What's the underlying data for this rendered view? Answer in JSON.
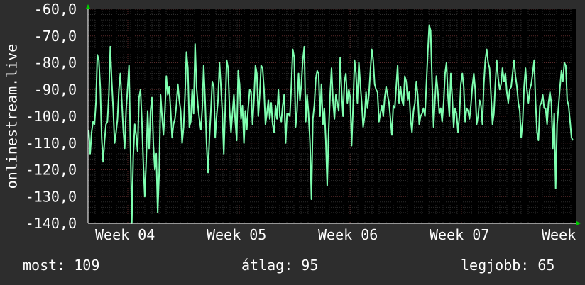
{
  "chart_data": {
    "type": "line",
    "title": "",
    "xlabel": "",
    "ylabel": "onlinestream.live",
    "ylim": [
      -140,
      -60
    ],
    "y_ticks": [
      "-60,0",
      "-70,0",
      "-80,0",
      "-90,0",
      "-100,0",
      "-110,0",
      "-120,0",
      "-130,0",
      "-140,0"
    ],
    "x_ticks": [
      "Week 04",
      "Week 05",
      "Week 06",
      "Week 07",
      "Week"
    ],
    "grid": true,
    "colors": {
      "line": "#7fffb0",
      "background": "#000000",
      "grid_minor": "#2c2c2c",
      "grid_major": "#5a2a2a",
      "axis": "#ffffff",
      "arrow": "#00cc00"
    },
    "series": [
      {
        "values": [
          -105,
          -114,
          -106,
          -102,
          -103,
          -95,
          -77,
          -79,
          -89,
          -108,
          -117,
          -109,
          -103,
          -102,
          -92,
          -74,
          -87,
          -97,
          -110,
          -106,
          -101,
          -90,
          -84,
          -94,
          -105,
          -112,
          -98,
          -90,
          -81,
          -110,
          -140,
          -115,
          -103,
          -107,
          -113,
          -93,
          -90,
          -102,
          -118,
          -130,
          -117,
          -98,
          -112,
          -98,
          -93,
          -111,
          -120,
          -114,
          -136,
          -121,
          -92,
          -100,
          -107,
          -98,
          -85,
          -92,
          -89,
          -98,
          -108,
          -103,
          -101,
          -96,
          -88,
          -94,
          -98,
          -110,
          -104,
          -92,
          -76,
          -82,
          -104,
          -102,
          -90,
          -99,
          -73,
          -89,
          -96,
          -101,
          -105,
          -97,
          -81,
          -94,
          -110,
          -121,
          -108,
          -98,
          -87,
          -89,
          -108,
          -100,
          -94,
          -80,
          -89,
          -99,
          -114,
          -97,
          -79,
          -82,
          -97,
          -106,
          -99,
          -92,
          -102,
          -109,
          -83,
          -88,
          -101,
          -96,
          -110,
          -98,
          -105,
          -97,
          -90,
          -91,
          -103,
          -94,
          -81,
          -84,
          -100,
          -92,
          -81,
          -82,
          -90,
          -103,
          -99,
          -94,
          -101,
          -95,
          -103,
          -106,
          -96,
          -101,
          -90,
          -100,
          -102,
          -96,
          -92,
          -110,
          -99,
          -99,
          -100,
          -89,
          -75,
          -78,
          -104,
          -98,
          -84,
          -94,
          -88,
          -79,
          -74,
          -102,
          -92,
          -99,
          -110,
          -131,
          -101,
          -96,
          -86,
          -83,
          -84,
          -100,
          -88,
          -103,
          -97,
          -109,
          -126,
          -105,
          -92,
          -82,
          -94,
          -101,
          -92,
          -95,
          -98,
          -78,
          -91,
          -100,
          -87,
          -84,
          -95,
          -90,
          -93,
          -111,
          -96,
          -79,
          -84,
          -95,
          -80,
          -88,
          -95,
          -104,
          -100,
          -91,
          -97,
          -92,
          -83,
          -75,
          -79,
          -88,
          -90,
          -91,
          -102,
          -99,
          -96,
          -100,
          -93,
          -89,
          -92,
          -95,
          -101,
          -107,
          -96,
          -97,
          -89,
          -81,
          -95,
          -89,
          -94,
          -96,
          -85,
          -87,
          -94,
          -91,
          -101,
          -106,
          -98,
          -95,
          -87,
          -92,
          -103,
          -100,
          -99,
          -97,
          -100,
          -88,
          -76,
          -66,
          -68,
          -88,
          -104,
          -94,
          -85,
          -91,
          -99,
          -97,
          -102,
          -95,
          -84,
          -80,
          -92,
          -100,
          -84,
          -93,
          -104,
          -97,
          -99,
          -106,
          -100,
          -88,
          -84,
          -89,
          -102,
          -97,
          -98,
          -101,
          -96,
          -89,
          -84,
          -90,
          -103,
          -100,
          -94,
          -96,
          -103,
          -88,
          -79,
          -75,
          -80,
          -82,
          -92,
          -103,
          -99,
          -88,
          -79,
          -86,
          -90,
          -88,
          -82,
          -87,
          -84,
          -91,
          -95,
          -90,
          -89,
          -84,
          -79,
          -85,
          -89,
          -95,
          -98,
          -108,
          -102,
          -89,
          -82,
          -90,
          -95,
          -90,
          -88,
          -84,
          -79,
          -95,
          -106,
          -109,
          -96,
          -95,
          -92,
          -97,
          -97,
          -103,
          -95,
          -91,
          -95,
          -112,
          -99,
          -127,
          -103,
          -96,
          -89,
          -83,
          -87,
          -80,
          -81,
          -94,
          -96,
          -102,
          -108,
          -109
        ]
      }
    ]
  },
  "stats": {
    "current": "most: 109",
    "average": "átlag: 95",
    "best": "legjobb: 65"
  }
}
